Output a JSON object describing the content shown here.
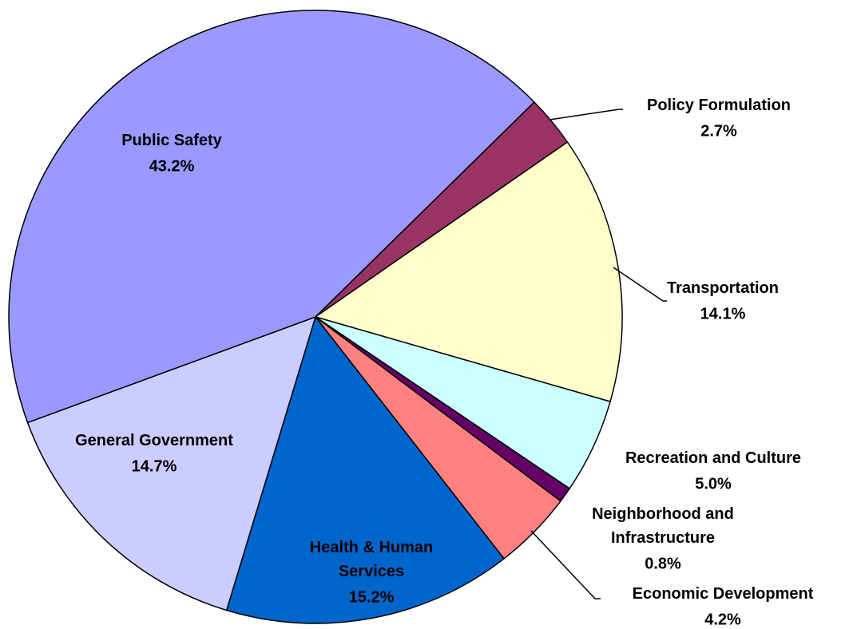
{
  "chart_data": {
    "type": "pie",
    "categories": [
      "Policy Formulation",
      "Transportation",
      "Recreation and Culture",
      "Neighborhood and Infrastructure",
      "Economic Development",
      "Health & Human Services",
      "General Government",
      "Public Safety"
    ],
    "values": [
      2.7,
      14.1,
      5.0,
      0.8,
      4.2,
      15.2,
      14.7,
      43.2
    ],
    "value_labels": [
      "2.7%",
      "14.1%",
      "5.0%",
      "0.8%",
      "4.2%",
      "15.2%",
      "14.7%",
      "43.2%"
    ],
    "colors": [
      "#993366",
      "#ffffcc",
      "#ccffff",
      "#660066",
      "#ff8080",
      "#0066cc",
      "#ccccff",
      "#9999ff"
    ]
  }
}
